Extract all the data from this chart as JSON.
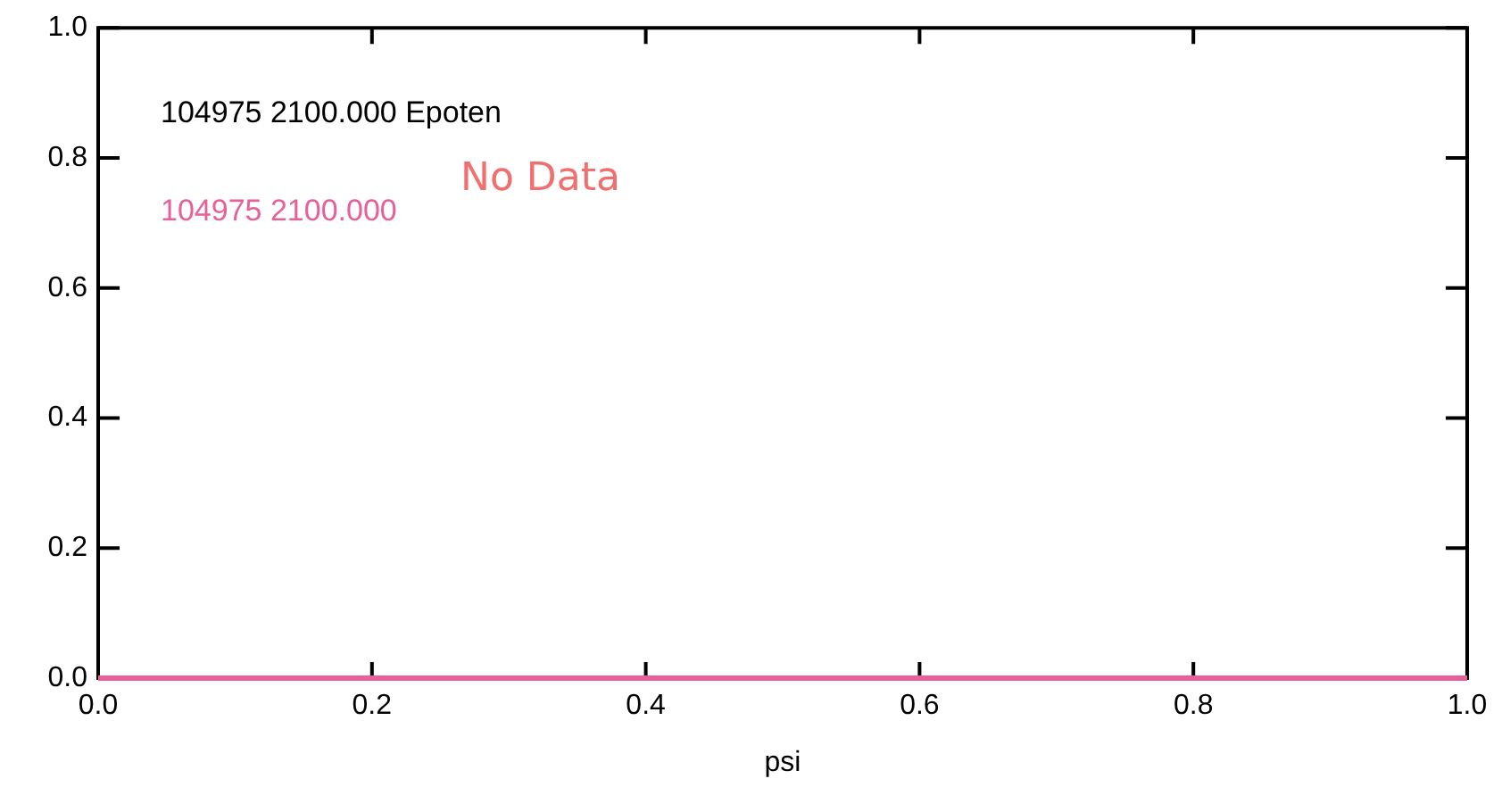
{
  "chart_data": {
    "type": "line",
    "xlabel": "psi",
    "annotations": [
      "104975 2100.000 Epoten",
      "No Data"
    ],
    "series": [
      {
        "name": "104975 2100.000",
        "color": "#e8609a",
        "x": [
          0,
          1
        ],
        "values": [
          0,
          0
        ]
      }
    ],
    "xlim": [
      0,
      1
    ],
    "xticks": [
      {
        "value": 0,
        "label": "0.0"
      },
      {
        "value": 0.2,
        "label": "0.2"
      },
      {
        "value": 0.4,
        "label": "0.4"
      },
      {
        "value": 0.6,
        "label": "0.6"
      },
      {
        "value": 0.8,
        "label": "0.8"
      },
      {
        "value": 1,
        "label": "1.0"
      }
    ],
    "ylim": [
      0,
      1
    ],
    "yticks": [
      {
        "value": 0,
        "label": "0.0"
      },
      {
        "value": 0.2,
        "label": "0.2"
      },
      {
        "value": 0.4,
        "label": "0.4"
      },
      {
        "value": 0.6,
        "label": "0.6"
      },
      {
        "value": 0.8,
        "label": "0.8"
      },
      {
        "value": 1,
        "label": "1.0"
      }
    ],
    "legend": "top left",
    "marker": "none",
    "line_style": "solid",
    "grid": false
  }
}
